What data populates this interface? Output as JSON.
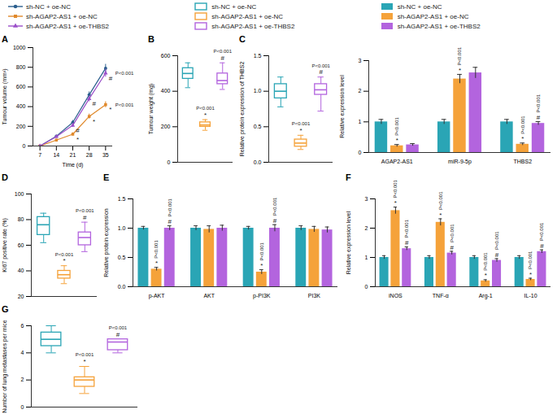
{
  "legend": {
    "groups": [
      {
        "kind": "line",
        "names": [
          "sh-NC + oe-NC",
          "sh-AGAP2-AS1 + oe-NC",
          "sh-AGAP2-AS1 + oe-THBS2"
        ],
        "colors": [
          "#2c5f8e",
          "#e0892b",
          "#9b4fc9"
        ],
        "markers": [
          "circle",
          "square",
          "triangle"
        ]
      },
      {
        "kind": "box",
        "names": [
          "sh-NC + oe-NC",
          "sh-AGAP2-AS1 + oe-NC",
          "sh-AGAP2-AS1 + oe-THBS2"
        ],
        "colors": [
          "#2aa5b5",
          "#f5a23a",
          "#b364de"
        ]
      },
      {
        "kind": "bar",
        "names": [
          "sh-NC + oe-NC",
          "sh-AGAP2-AS1 + oe-NC",
          "sh-AGAP2-AS1 + oe-THBS2"
        ],
        "colors": [
          "#2aa5b5",
          "#f5a23a",
          "#b364de"
        ]
      }
    ]
  },
  "chart_data": [
    {
      "panel": "A",
      "type": "line",
      "x_label": "Time (d)",
      "y_label": "Tumour volume (mm³)",
      "x": [
        7,
        14,
        21,
        28,
        35
      ],
      "xlim": [
        4,
        38
      ],
      "xticks": [
        7,
        14,
        21,
        28,
        35
      ],
      "ylim": [
        0,
        1000
      ],
      "yticks": [
        0,
        200,
        400,
        600,
        800,
        1000
      ],
      "series": [
        {
          "name": "sh-NC + oe-NC",
          "color": "#2c5f8e",
          "marker": "circle",
          "values": [
            0,
            100,
            240,
            520,
            790
          ],
          "errors": [
            0,
            10,
            20,
            30,
            40
          ],
          "sig_marks": [
            null,
            null,
            null,
            null,
            null
          ],
          "p_labels": [
            null,
            null,
            null,
            null,
            null
          ]
        },
        {
          "name": "sh-AGAP2-AS1 + oe-NC",
          "color": "#e0892b",
          "marker": "square",
          "values": [
            0,
            60,
            120,
            300,
            420
          ],
          "errors": [
            0,
            8,
            15,
            25,
            30
          ],
          "sig_marks": [
            null,
            null,
            "*",
            "*",
            "*"
          ],
          "p_labels": [
            null,
            null,
            null,
            null,
            "P<0.001"
          ]
        },
        {
          "name": "sh-AGAP2-AS1 + oe-THBS2",
          "color": "#9b4fc9",
          "marker": "triangle",
          "values": [
            0,
            95,
            210,
            480,
            740
          ],
          "errors": [
            0,
            10,
            20,
            30,
            40
          ],
          "sig_marks": [
            null,
            null,
            "#",
            "#",
            "#"
          ],
          "p_labels": [
            null,
            null,
            null,
            null,
            "P<0.001"
          ]
        }
      ]
    },
    {
      "panel": "B",
      "type": "box",
      "y_label": "Tumour weight (mg)",
      "tick_labels": "y",
      "ylim": [
        0,
        600
      ],
      "yticks": [
        0,
        200,
        400,
        600
      ],
      "series": [
        {
          "name": "sh-NC + oe-NC",
          "color": "#2aa5b5",
          "min": 420,
          "q1": 470,
          "median": 500,
          "q3": 530,
          "max": 560,
          "sig_mark": null,
          "p_label": null
        },
        {
          "name": "sh-AGAP2-AS1 + oe-NC",
          "color": "#f5a23a",
          "min": 180,
          "q1": 200,
          "median": 210,
          "q3": 225,
          "max": 240,
          "sig_mark": "*",
          "p_label": "P<0.001"
        },
        {
          "name": "sh-AGAP2-AS1 + oe-THBS2",
          "color": "#b364de",
          "min": 410,
          "q1": 440,
          "median": 460,
          "q3": 500,
          "max": 560,
          "sig_mark": "#",
          "p_label": "P<0.001"
        }
      ]
    },
    {
      "panel": "C",
      "type": "box",
      "y_label": "Relative protein expression of THBS2",
      "tick_labels": "y",
      "ylim": [
        0,
        1.5
      ],
      "yticks": [
        {
          "value": 0,
          "label": "0.0"
        },
        {
          "value": 0.5,
          "label": "0.5"
        },
        {
          "value": 1,
          "label": "1.0"
        },
        {
          "value": 1.5,
          "label": "1.5"
        }
      ],
      "series": [
        {
          "name": "sh-NC + oe-NC",
          "color": "#2aa5b5",
          "min": 0.78,
          "q1": 0.9,
          "median": 1.0,
          "q3": 1.1,
          "max": 1.2,
          "sig_mark": null,
          "p_label": null
        },
        {
          "name": "sh-AGAP2-AS1 + oe-NC",
          "color": "#f5a23a",
          "min": 0.18,
          "q1": 0.22,
          "median": 0.27,
          "q3": 0.32,
          "max": 0.38,
          "sig_mark": "*",
          "p_label": "P<0.001"
        },
        {
          "name": "sh-AGAP2-AS1 + oe-THBS2",
          "color": "#b364de",
          "min": 0.72,
          "q1": 0.95,
          "median": 1.02,
          "q3": 1.1,
          "max": 1.2,
          "sig_mark": "#",
          "p_label": "P<0.001"
        }
      ]
    },
    {
      "type": "bar",
      "y_label": "Relative expression level",
      "categories": [
        "AGAP2-AS1",
        "miR-9-5p",
        "THBS2"
      ],
      "ylim": [
        0,
        3
      ],
      "yticks": [
        0,
        1,
        2,
        3
      ],
      "series": [
        {
          "name": "sh-NC + oe-NC",
          "color": "#2aa5b5",
          "values": [
            1,
            1,
            1
          ],
          "errors": [
            0.08,
            0.08,
            0.08
          ],
          "sig_marks": [
            null,
            null,
            null
          ],
          "p_labels": [
            null,
            null,
            null
          ]
        },
        {
          "name": "sh-AGAP2-AS1 + oe-NC",
          "color": "#f5a23a",
          "values": [
            0.22,
            2.4,
            0.27
          ],
          "errors": [
            0.04,
            0.15,
            0.04
          ],
          "sig_marks": [
            "*",
            "*",
            "*"
          ],
          "p_labels": [
            "P<0.001",
            "P<0.001",
            "P<0.001"
          ]
        },
        {
          "name": "sh-AGAP2-AS1 + oe-THBS2",
          "color": "#b364de",
          "values": [
            0.25,
            2.6,
            0.95
          ],
          "errors": [
            0.04,
            0.18,
            0.06
          ],
          "sig_marks": [
            null,
            null,
            "#"
          ],
          "p_labels": [
            null,
            null,
            "P<0.001"
          ]
        }
      ]
    },
    {
      "panel": "D",
      "type": "box",
      "y_label": "Ki67 positive rate (%)",
      "tick_labels": "y",
      "ylim": [
        20,
        100
      ],
      "yticks": [
        20,
        40,
        60,
        80,
        100
      ],
      "series": [
        {
          "name": "sh-NC + oe-NC",
          "color": "#2aa5b5",
          "min": 62,
          "q1": 68,
          "median": 76,
          "q3": 82,
          "max": 85,
          "sig_mark": null,
          "p_label": null
        },
        {
          "name": "sh-AGAP2-AS1 + oe-NC",
          "color": "#f5a23a",
          "min": 30,
          "q1": 34,
          "median": 37,
          "q3": 40,
          "max": 44,
          "sig_mark": "*",
          "p_label": "P<0.001"
        },
        {
          "name": "sh-AGAP2-AS1 + oe-THBS2",
          "color": "#b364de",
          "min": 55,
          "q1": 60,
          "median": 66,
          "q3": 70,
          "max": 78,
          "sig_mark": "#",
          "p_label": "P<0.001"
        }
      ]
    },
    {
      "panel": "E",
      "type": "bar",
      "y_label": "Relative protein expression",
      "categories": [
        "p-AKT",
        "AKT",
        "p-PI3K",
        "PI3K"
      ],
      "ylim": [
        0,
        1.5
      ],
      "yticks": [
        {
          "value": 0,
          "label": "0.0"
        },
        {
          "value": 0.5,
          "label": "0.5"
        },
        {
          "value": 1,
          "label": "1.0"
        },
        {
          "value": 1.5,
          "label": "1.5"
        }
      ],
      "series": [
        {
          "name": "sh-NC + oe-NC",
          "color": "#2aa5b5",
          "values": [
            1,
            1,
            1,
            1
          ],
          "errors": [
            0.03,
            0.04,
            0.03,
            0.04
          ],
          "sig_marks": [
            null,
            null,
            null,
            null
          ],
          "p_labels": [
            null,
            null,
            null,
            null
          ]
        },
        {
          "name": "sh-AGAP2-AS1 + oe-NC",
          "color": "#f5a23a",
          "values": [
            0.3,
            0.98,
            0.25,
            0.98
          ],
          "errors": [
            0.03,
            0.06,
            0.04,
            0.05
          ],
          "sig_marks": [
            "*",
            null,
            "*",
            null
          ],
          "p_labels": [
            "P<0.001",
            null,
            "P<0.001",
            null
          ]
        },
        {
          "name": "sh-AGAP2-AS1 + oe-THBS2",
          "color": "#b364de",
          "values": [
            1.0,
            1.0,
            1.0,
            0.97
          ],
          "errors": [
            0.04,
            0.05,
            0.06,
            0.05
          ],
          "sig_marks": [
            "#",
            null,
            "#",
            null
          ],
          "p_labels": [
            "P<0.001",
            null,
            "P<0.001",
            null
          ]
        }
      ]
    },
    {
      "panel": "F",
      "type": "bar",
      "y_label": "Relative expression level",
      "categories": [
        "iNOS",
        "TNF-α",
        "Arg-1",
        "IL-10"
      ],
      "ylim": [
        0,
        3
      ],
      "yticks": [
        0,
        1,
        2,
        3
      ],
      "series": [
        {
          "name": "sh-NC + oe-NC",
          "color": "#2aa5b5",
          "values": [
            1,
            1,
            1,
            1
          ],
          "errors": [
            0.06,
            0.06,
            0.06,
            0.06
          ],
          "sig_marks": [
            null,
            null,
            null,
            null
          ],
          "p_labels": [
            null,
            null,
            null,
            null
          ]
        },
        {
          "name": "sh-AGAP2-AS1 + oe-NC",
          "color": "#f5a23a",
          "values": [
            2.6,
            2.2,
            0.2,
            0.25
          ],
          "errors": [
            0.12,
            0.12,
            0.04,
            0.04
          ],
          "sig_marks": [
            "*",
            "*",
            "*",
            "*"
          ],
          "p_labels": [
            "P<0.001",
            "P<0.001",
            "P<0.001",
            "P<0.001"
          ]
        },
        {
          "name": "sh-AGAP2-AS1 + oe-THBS2",
          "color": "#b364de",
          "values": [
            1.3,
            1.15,
            0.9,
            1.2
          ],
          "errors": [
            0.06,
            0.06,
            0.06,
            0.06
          ],
          "sig_marks": [
            "#",
            "#",
            "#",
            "#"
          ],
          "p_labels": [
            "P<0.001",
            "P<0.001",
            "P<0.001",
            "P<0.001"
          ]
        }
      ]
    },
    {
      "panel": "G",
      "type": "box",
      "y_label": "Number of lung metastases per mice",
      "tick_labels": "y",
      "ylim": [
        0,
        6
      ],
      "yticks": [
        0,
        2,
        4,
        6
      ],
      "series": [
        {
          "name": "sh-NC + oe-NC",
          "color": "#2aa5b5",
          "min": 4,
          "q1": 4.5,
          "median": 5,
          "q3": 5.5,
          "max": 6,
          "sig_mark": null,
          "p_label": null
        },
        {
          "name": "sh-AGAP2-AS1 + oe-NC",
          "color": "#f5a23a",
          "min": 1,
          "q1": 1.5,
          "median": 2,
          "q3": 2.2,
          "max": 3,
          "sig_mark": "*",
          "p_label": "P<0.001"
        },
        {
          "name": "sh-AGAP2-AS1 + oe-THBS2",
          "color": "#b364de",
          "min": 4,
          "q1": 4.2,
          "median": 4.8,
          "q3": 5,
          "max": 5,
          "sig_mark": "#",
          "p_label": "P<0.001"
        }
      ]
    }
  ]
}
